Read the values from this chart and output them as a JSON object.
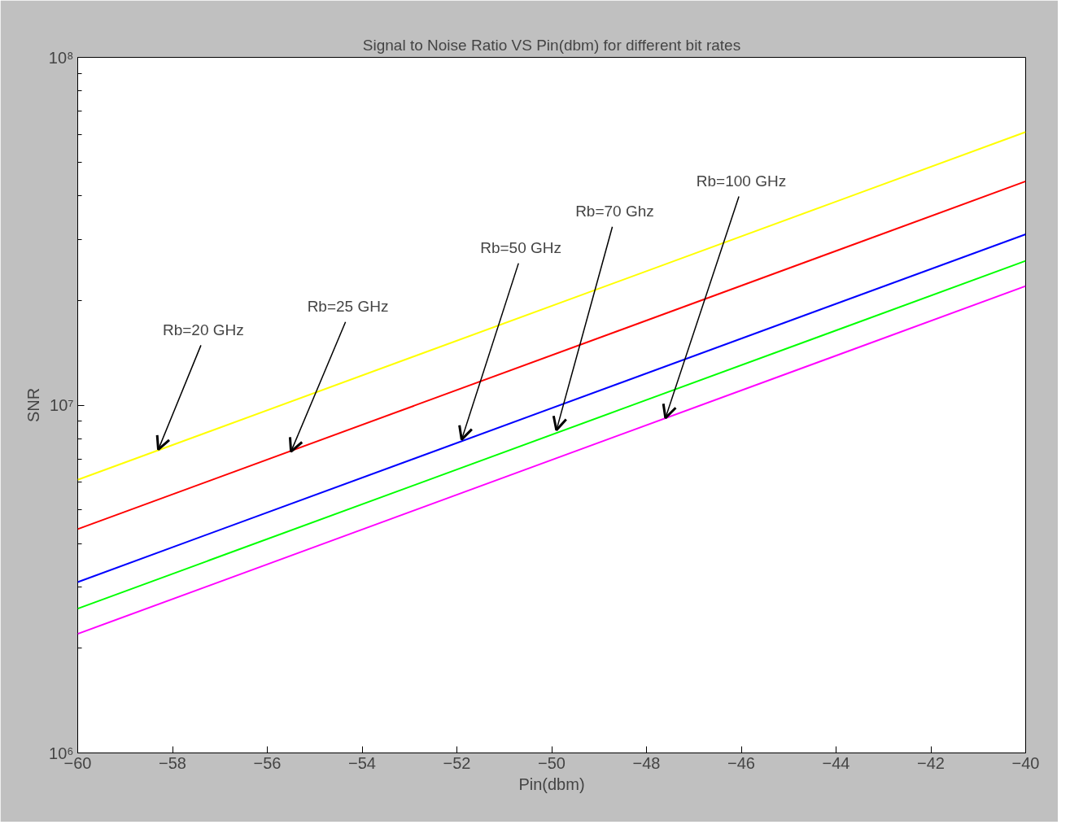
{
  "chart_data": {
    "type": "line",
    "title": "Signal to Noise Ratio VS Pin(dbm) for different bit rates",
    "xlabel": "Pin(dbm)",
    "ylabel": "SNR",
    "log": "y",
    "x": [
      -60,
      -40
    ],
    "series": [
      {
        "color": "#ffff00",
        "values": [
          6100000,
          61000000
        ]
      },
      {
        "color": "#ff0000",
        "values": [
          4400000,
          44000000
        ]
      },
      {
        "color": "#0000ff",
        "values": [
          3100000,
          31000000
        ]
      },
      {
        "color": "#00ff00",
        "values": [
          2600000,
          26000000
        ]
      },
      {
        "color": "#ff00ff",
        "values": [
          2200000,
          22000000
        ]
      }
    ],
    "xlim": [
      -60,
      -40
    ],
    "xticks": [
      -60,
      -58,
      -56,
      -54,
      -52,
      -50,
      -48,
      -46,
      -44,
      -42,
      -40
    ],
    "ylim": [
      1000000,
      100000000
    ],
    "yticks": [
      {
        "value": 1000000,
        "label": "10⁶"
      },
      {
        "value": 10000000,
        "label": "10⁷"
      },
      {
        "value": 100000000,
        "label": "10⁸"
      }
    ],
    "annotations": [
      {
        "text": "Rb=20 GHz",
        "x": -58.3,
        "y": 7450000
      },
      {
        "text": "Rb=25 GHz",
        "x": -55.5,
        "y": 7350000
      },
      {
        "text": "Rb=50 GHz",
        "x": -51.9,
        "y": 7960000
      },
      {
        "text": "Rb=70 Ghz",
        "x": -49.9,
        "y": 8470000
      },
      {
        "text": "Rb=100 GHz",
        "x": -47.6,
        "y": 9180000
      }
    ]
  }
}
